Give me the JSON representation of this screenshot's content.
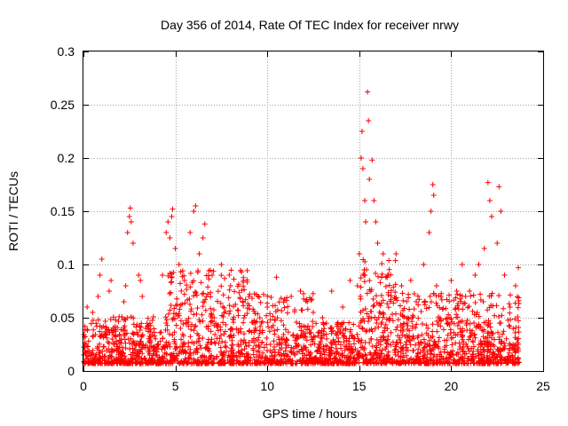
{
  "chart_data": {
    "type": "scatter",
    "title": "Day 356 of 2014, Rate Of TEC Index for receiver nrwy",
    "xlabel": "GPS time / hours",
    "ylabel": "ROTI / TECUs",
    "xlim": [
      0,
      25
    ],
    "ylim": [
      0,
      0.3
    ],
    "x_ticks": [
      "0",
      "5",
      "10",
      "15",
      "20",
      "25"
    ],
    "y_ticks": [
      "0",
      "0.05",
      "0.1",
      "0.15",
      "0.2",
      "0.25",
      "0.3"
    ],
    "grid": true,
    "marker": "plus",
    "series_color": "#ff0000",
    "notable_points": [
      {
        "x": 0.2,
        "y": 0.06
      },
      {
        "x": 0.5,
        "y": 0.055
      },
      {
        "x": 0.8,
        "y": 0.07
      },
      {
        "x": 0.9,
        "y": 0.09
      },
      {
        "x": 1.0,
        "y": 0.105
      },
      {
        "x": 1.4,
        "y": 0.075
      },
      {
        "x": 1.5,
        "y": 0.085
      },
      {
        "x": 2.2,
        "y": 0.065
      },
      {
        "x": 2.3,
        "y": 0.08
      },
      {
        "x": 2.4,
        "y": 0.13
      },
      {
        "x": 2.5,
        "y": 0.145
      },
      {
        "x": 2.55,
        "y": 0.153
      },
      {
        "x": 2.6,
        "y": 0.14
      },
      {
        "x": 2.7,
        "y": 0.12
      },
      {
        "x": 3.0,
        "y": 0.09
      },
      {
        "x": 3.1,
        "y": 0.085
      },
      {
        "x": 3.2,
        "y": 0.07
      },
      {
        "x": 4.3,
        "y": 0.09
      },
      {
        "x": 4.5,
        "y": 0.13
      },
      {
        "x": 4.6,
        "y": 0.14
      },
      {
        "x": 4.7,
        "y": 0.125
      },
      {
        "x": 4.8,
        "y": 0.145
      },
      {
        "x": 4.85,
        "y": 0.152
      },
      {
        "x": 5.0,
        "y": 0.115
      },
      {
        "x": 5.2,
        "y": 0.1
      },
      {
        "x": 5.5,
        "y": 0.085
      },
      {
        "x": 5.8,
        "y": 0.13
      },
      {
        "x": 6.0,
        "y": 0.15
      },
      {
        "x": 6.1,
        "y": 0.155
      },
      {
        "x": 6.3,
        "y": 0.11
      },
      {
        "x": 6.5,
        "y": 0.125
      },
      {
        "x": 6.6,
        "y": 0.138
      },
      {
        "x": 7.0,
        "y": 0.09
      },
      {
        "x": 7.5,
        "y": 0.1
      },
      {
        "x": 8.0,
        "y": 0.08
      },
      {
        "x": 8.7,
        "y": 0.085
      },
      {
        "x": 9.0,
        "y": 0.07
      },
      {
        "x": 9.5,
        "y": 0.07
      },
      {
        "x": 10.0,
        "y": 0.06
      },
      {
        "x": 10.5,
        "y": 0.088
      },
      {
        "x": 11.3,
        "y": 0.07
      },
      {
        "x": 11.8,
        "y": 0.075
      },
      {
        "x": 12.2,
        "y": 0.058
      },
      {
        "x": 12.5,
        "y": 0.055
      },
      {
        "x": 13.0,
        "y": 0.05
      },
      {
        "x": 13.5,
        "y": 0.075
      },
      {
        "x": 14.1,
        "y": 0.06
      },
      {
        "x": 14.5,
        "y": 0.085
      },
      {
        "x": 14.9,
        "y": 0.08
      },
      {
        "x": 15.0,
        "y": 0.11
      },
      {
        "x": 15.1,
        "y": 0.2
      },
      {
        "x": 15.15,
        "y": 0.225
      },
      {
        "x": 15.2,
        "y": 0.19
      },
      {
        "x": 15.3,
        "y": 0.16
      },
      {
        "x": 15.35,
        "y": 0.14
      },
      {
        "x": 15.45,
        "y": 0.262
      },
      {
        "x": 15.5,
        "y": 0.235
      },
      {
        "x": 15.55,
        "y": 0.18
      },
      {
        "x": 15.7,
        "y": 0.198
      },
      {
        "x": 15.8,
        "y": 0.16
      },
      {
        "x": 15.9,
        "y": 0.14
      },
      {
        "x": 16.0,
        "y": 0.12
      },
      {
        "x": 16.3,
        "y": 0.11
      },
      {
        "x": 16.6,
        "y": 0.09
      },
      {
        "x": 17.0,
        "y": 0.11
      },
      {
        "x": 17.3,
        "y": 0.08
      },
      {
        "x": 17.8,
        "y": 0.085
      },
      {
        "x": 18.1,
        "y": 0.065
      },
      {
        "x": 18.5,
        "y": 0.1
      },
      {
        "x": 18.8,
        "y": 0.13
      },
      {
        "x": 18.9,
        "y": 0.15
      },
      {
        "x": 19.0,
        "y": 0.175
      },
      {
        "x": 19.05,
        "y": 0.165
      },
      {
        "x": 19.2,
        "y": 0.08
      },
      {
        "x": 20.0,
        "y": 0.085
      },
      {
        "x": 20.3,
        "y": 0.075
      },
      {
        "x": 20.6,
        "y": 0.1
      },
      {
        "x": 21.0,
        "y": 0.075
      },
      {
        "x": 21.3,
        "y": 0.09
      },
      {
        "x": 21.5,
        "y": 0.1
      },
      {
        "x": 21.8,
        "y": 0.115
      },
      {
        "x": 22.0,
        "y": 0.177
      },
      {
        "x": 22.1,
        "y": 0.16
      },
      {
        "x": 22.2,
        "y": 0.145
      },
      {
        "x": 22.5,
        "y": 0.12
      },
      {
        "x": 22.6,
        "y": 0.173
      },
      {
        "x": 22.7,
        "y": 0.15
      },
      {
        "x": 22.9,
        "y": 0.09
      },
      {
        "x": 23.2,
        "y": 0.06
      },
      {
        "x": 23.5,
        "y": 0.08
      },
      {
        "x": 23.65,
        "y": 0.097
      }
    ]
  }
}
